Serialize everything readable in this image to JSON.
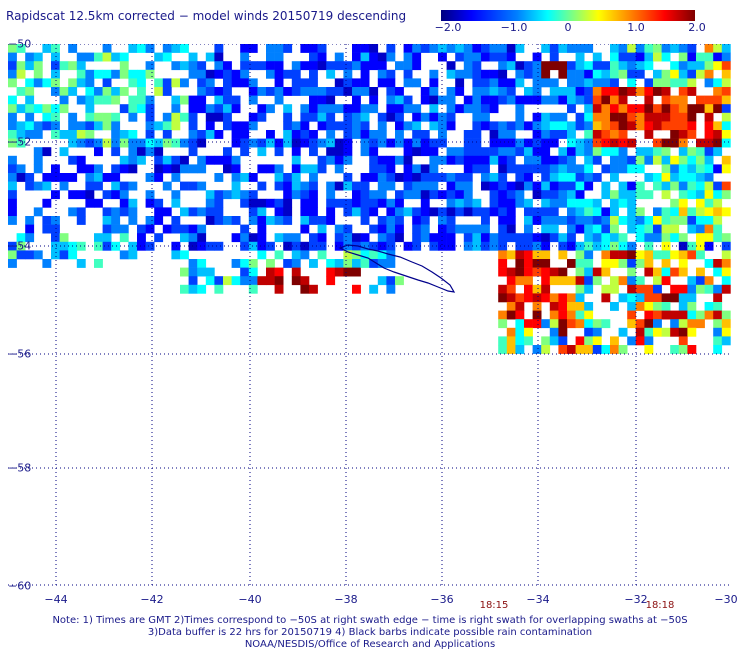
{
  "title": "Rapidscat 12.5km corrected − model winds 20150719 descending",
  "colorbar": {
    "ticks": [
      "−2.0",
      "−1.0",
      "0",
      "1.0",
      "2.0"
    ],
    "colors": [
      "#00007f",
      "#0000ff",
      "#0080ff",
      "#00ffff",
      "#80ff80",
      "#ffff00",
      "#ff8000",
      "#ff0000",
      "#7f0000"
    ]
  },
  "map": {
    "lat_labels": [
      "−50",
      "−52",
      "−54",
      "−56",
      "−58",
      "−60"
    ],
    "lon_labels": [
      "−44",
      "−42",
      "−40",
      "−38",
      "−36",
      "−34",
      "−32",
      "−30"
    ],
    "time_labels": [
      "18:15",
      "18:18"
    ],
    "coastline_color": "#00008b",
    "grid_color": "#000080"
  },
  "notes": {
    "line1": "Note: 1) Times are GMT 2)Times correspond to −50S at right swath edge − time is right swath for overlapping swaths at −50S",
    "line2": "3)Data buffer is 22 hrs for 20150719 4) Black barbs indicate possible rain contamination",
    "line3": "NOAA/NESDIS/Office of Research and Applications"
  }
}
